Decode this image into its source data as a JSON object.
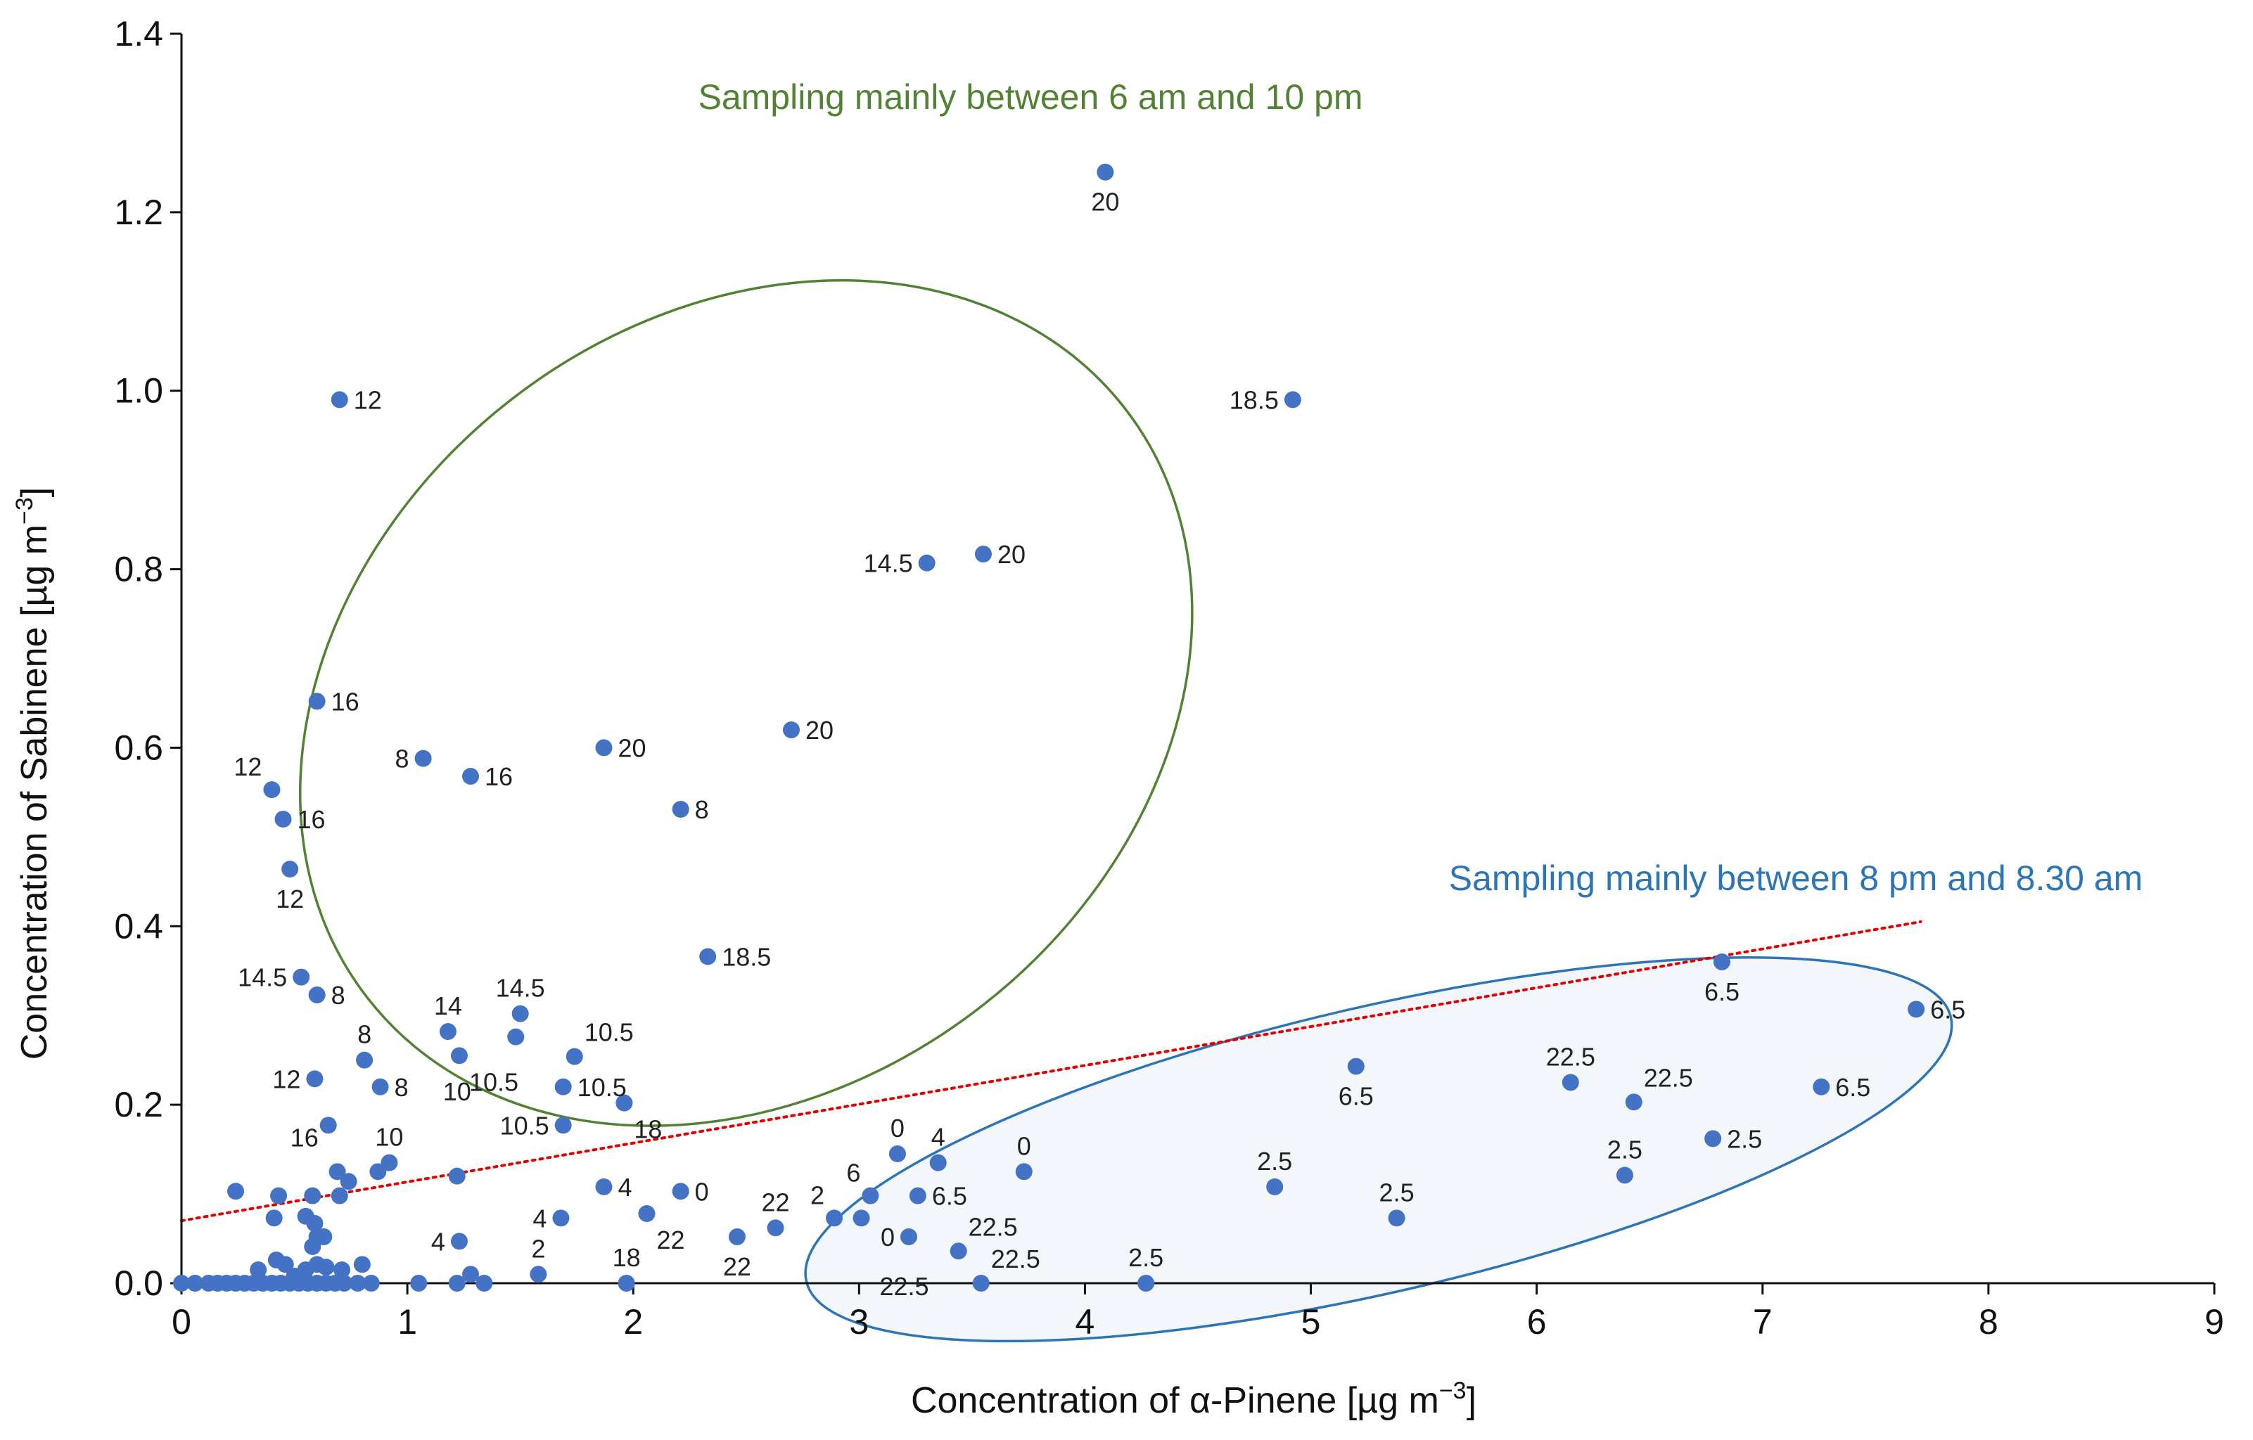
{
  "colors": {
    "point": "#4472C4",
    "day_group": "#548235",
    "night_group": "#2E75B6",
    "night_fill": "#F3F6FA",
    "trend": "#E00000",
    "axis": "#111111"
  },
  "chart_data": {
    "type": "scatter",
    "xlabel": "Concentration of α-Pinene [µg m",
    "xlabel_sup": "−3",
    "xlabel_end": "]",
    "ylabel": "Concentration of Sabinene [µg m",
    "ylabel_sup": "−3",
    "ylabel_end": "]",
    "xlim": [
      0,
      9
    ],
    "ylim": [
      0,
      1.4
    ],
    "x_ticks": [
      "0",
      "1",
      "2",
      "3",
      "4",
      "5",
      "6",
      "7",
      "8",
      "9"
    ],
    "y_ticks": [
      "0.0",
      "0.2",
      "0.4",
      "0.6",
      "0.8",
      "1.0",
      "1.2",
      "1.4"
    ],
    "grid": false,
    "annotations": [
      {
        "name": "day-group-annotation",
        "text": "Sampling mainly between 6 am and 10 pm"
      },
      {
        "name": "night-group-annotation",
        "text": "Sampling mainly between 8 pm and 8.30 am"
      }
    ],
    "groups": [
      {
        "name": "day",
        "label": "Sampling mainly between 6 am and 10 pm",
        "center": [
          2.5,
          0.65
        ],
        "radius": [
          4.25,
          0.43
        ],
        "angle_deg": 38
      },
      {
        "name": "night",
        "label": "Sampling mainly between 8 pm and 8.30 am",
        "center": [
          5.3,
          0.15
        ],
        "radius": [
          5.2,
          0.16
        ],
        "angle_deg": 13
      }
    ],
    "trendline": {
      "x": [
        0,
        7.7
      ],
      "y": [
        0.07,
        0.405
      ],
      "style": "dotted"
    },
    "points": [
      {
        "x": 4.09,
        "y": 1.245,
        "label": "20",
        "pos": "below"
      },
      {
        "x": 4.92,
        "y": 0.99,
        "label": "18.5",
        "pos": "left"
      },
      {
        "x": 0.7,
        "y": 0.99,
        "label": "12",
        "pos": "right"
      },
      {
        "x": 3.3,
        "y": 0.807,
        "label": "14.5",
        "pos": "left"
      },
      {
        "x": 3.55,
        "y": 0.817,
        "label": "20",
        "pos": "right"
      },
      {
        "x": 0.6,
        "y": 0.652,
        "label": "16",
        "pos": "right"
      },
      {
        "x": 2.7,
        "y": 0.62,
        "label": "20",
        "pos": "right"
      },
      {
        "x": 1.87,
        "y": 0.6,
        "label": "20",
        "pos": "right"
      },
      {
        "x": 1.07,
        "y": 0.588,
        "label": "8",
        "pos": "left"
      },
      {
        "x": 1.28,
        "y": 0.568,
        "label": "16",
        "pos": "right"
      },
      {
        "x": 0.4,
        "y": 0.553,
        "label": "12",
        "pos": "upper-left"
      },
      {
        "x": 2.21,
        "y": 0.531,
        "label": "8",
        "pos": "right"
      },
      {
        "x": 0.45,
        "y": 0.52,
        "label": "16",
        "pos": "right"
      },
      {
        "x": 0.48,
        "y": 0.464,
        "label": "12",
        "pos": "below"
      },
      {
        "x": 2.33,
        "y": 0.366,
        "label": "18.5",
        "pos": "right"
      },
      {
        "x": 0.53,
        "y": 0.343,
        "label": "14.5",
        "pos": "left"
      },
      {
        "x": 0.6,
        "y": 0.323,
        "label": "8",
        "pos": "right"
      },
      {
        "x": 1.5,
        "y": 0.302,
        "label": "14.5",
        "pos": "above"
      },
      {
        "x": 1.18,
        "y": 0.282,
        "label": "14",
        "pos": "above"
      },
      {
        "x": 1.48,
        "y": 0.276,
        "label": "",
        "pos": "none"
      },
      {
        "x": 1.74,
        "y": 0.254,
        "label": "10.5",
        "pos": "upper-right"
      },
      {
        "x": 1.23,
        "y": 0.255,
        "label": "10.5",
        "pos": "lower-right"
      },
      {
        "x": 0.81,
        "y": 0.25,
        "label": "8",
        "pos": "above"
      },
      {
        "x": 0.59,
        "y": 0.229,
        "label": "12",
        "pos": "left"
      },
      {
        "x": 1.69,
        "y": 0.22,
        "label": "10.5",
        "pos": "right"
      },
      {
        "x": 0.88,
        "y": 0.22,
        "label": "8",
        "pos": "right"
      },
      {
        "x": 1.96,
        "y": 0.202,
        "label": "18",
        "pos": "lower-right"
      },
      {
        "x": 0.65,
        "y": 0.177,
        "label": "16",
        "pos": "lower-left"
      },
      {
        "x": 1.69,
        "y": 0.177,
        "label": "10.5",
        "pos": "left"
      },
      {
        "x": 0.92,
        "y": 0.135,
        "label": "10",
        "pos": "above"
      },
      {
        "x": 1.22,
        "y": 0.248,
        "label": "10",
        "pos": "below-only"
      },
      {
        "x": 5.2,
        "y": 0.243,
        "label": "6.5",
        "pos": "below"
      },
      {
        "x": 6.15,
        "y": 0.225,
        "label": "22.5",
        "pos": "above"
      },
      {
        "x": 6.43,
        "y": 0.203,
        "label": "22.5",
        "pos": "upper-right"
      },
      {
        "x": 6.82,
        "y": 0.36,
        "label": "6.5",
        "pos": "below"
      },
      {
        "x": 7.68,
        "y": 0.307,
        "label": "6.5",
        "pos": "right"
      },
      {
        "x": 7.26,
        "y": 0.22,
        "label": "6.5",
        "pos": "right"
      },
      {
        "x": 6.78,
        "y": 0.162,
        "label": "2.5",
        "pos": "right"
      },
      {
        "x": 6.39,
        "y": 0.121,
        "label": "2.5",
        "pos": "above"
      },
      {
        "x": 4.84,
        "y": 0.108,
        "label": "2.5",
        "pos": "above"
      },
      {
        "x": 5.38,
        "y": 0.073,
        "label": "2.5",
        "pos": "above"
      },
      {
        "x": 4.27,
        "y": 0.0,
        "label": "2.5",
        "pos": "above"
      },
      {
        "x": 3.17,
        "y": 0.145,
        "label": "0",
        "pos": "above"
      },
      {
        "x": 3.35,
        "y": 0.135,
        "label": "4",
        "pos": "above"
      },
      {
        "x": 3.73,
        "y": 0.125,
        "label": "0",
        "pos": "above"
      },
      {
        "x": 1.87,
        "y": 0.108,
        "label": "4",
        "pos": "right"
      },
      {
        "x": 2.21,
        "y": 0.103,
        "label": "0",
        "pos": "right"
      },
      {
        "x": 3.05,
        "y": 0.098,
        "label": "6",
        "pos": "upper-left"
      },
      {
        "x": 3.26,
        "y": 0.098,
        "label": "6.5",
        "pos": "right"
      },
      {
        "x": 2.06,
        "y": 0.078,
        "label": "22",
        "pos": "lower-right"
      },
      {
        "x": 2.63,
        "y": 0.062,
        "label": "22",
        "pos": "above"
      },
      {
        "x": 2.89,
        "y": 0.073,
        "label": "2",
        "pos": "upper-left"
      },
      {
        "x": 3.01,
        "y": 0.073,
        "label": "",
        "pos": "none"
      },
      {
        "x": 2.46,
        "y": 0.052,
        "label": "22",
        "pos": "below"
      },
      {
        "x": 3.22,
        "y": 0.052,
        "label": "0",
        "pos": "left"
      },
      {
        "x": 3.44,
        "y": 0.036,
        "label": "22.5",
        "pos": "upper-right"
      },
      {
        "x": 3.2,
        "y": 0.03,
        "label": "22.5",
        "pos": "below-only"
      },
      {
        "x": 3.54,
        "y": 0.0,
        "label": "22.5",
        "pos": "upper-right"
      },
      {
        "x": 1.68,
        "y": 0.073,
        "label": "4",
        "pos": "left"
      },
      {
        "x": 1.23,
        "y": 0.047,
        "label": "4",
        "pos": "left"
      },
      {
        "x": 1.58,
        "y": 0.01,
        "label": "2",
        "pos": "above"
      },
      {
        "x": 1.97,
        "y": 0.0,
        "label": "18",
        "pos": "above"
      },
      {
        "x": 0.24,
        "y": 0.103,
        "label": "",
        "pos": "none"
      },
      {
        "x": 0.43,
        "y": 0.098,
        "label": "",
        "pos": "none"
      },
      {
        "x": 0.58,
        "y": 0.098,
        "label": "",
        "pos": "none"
      },
      {
        "x": 0.7,
        "y": 0.098,
        "label": "",
        "pos": "none"
      },
      {
        "x": 0.69,
        "y": 0.125,
        "label": "",
        "pos": "none"
      },
      {
        "x": 0.74,
        "y": 0.114,
        "label": "",
        "pos": "none"
      },
      {
        "x": 0.87,
        "y": 0.125,
        "label": "",
        "pos": "none"
      },
      {
        "x": 1.22,
        "y": 0.12,
        "label": "",
        "pos": "none"
      },
      {
        "x": 0.41,
        "y": 0.073,
        "label": "",
        "pos": "none"
      },
      {
        "x": 0.55,
        "y": 0.075,
        "label": "",
        "pos": "none"
      },
      {
        "x": 0.59,
        "y": 0.067,
        "label": "",
        "pos": "none"
      },
      {
        "x": 0.6,
        "y": 0.052,
        "label": "",
        "pos": "none"
      },
      {
        "x": 0.63,
        "y": 0.052,
        "label": "",
        "pos": "none"
      },
      {
        "x": 0.58,
        "y": 0.041,
        "label": "",
        "pos": "none"
      },
      {
        "x": 0.42,
        "y": 0.026,
        "label": "",
        "pos": "none"
      },
      {
        "x": 0.46,
        "y": 0.021,
        "label": "",
        "pos": "none"
      },
      {
        "x": 0.34,
        "y": 0.015,
        "label": "",
        "pos": "none"
      },
      {
        "x": 0.55,
        "y": 0.015,
        "label": "",
        "pos": "none"
      },
      {
        "x": 0.6,
        "y": 0.021,
        "label": "",
        "pos": "none"
      },
      {
        "x": 0.64,
        "y": 0.018,
        "label": "",
        "pos": "none"
      },
      {
        "x": 0.71,
        "y": 0.015,
        "label": "",
        "pos": "none"
      },
      {
        "x": 0.8,
        "y": 0.021,
        "label": "",
        "pos": "none"
      },
      {
        "x": 1.28,
        "y": 0.01,
        "label": "",
        "pos": "none"
      },
      {
        "x": 0.5,
        "y": 0.008,
        "label": "",
        "pos": "none"
      },
      {
        "x": 0.0,
        "y": 0.0,
        "label": "",
        "pos": "none"
      },
      {
        "x": 0.06,
        "y": 0.0,
        "label": "",
        "pos": "none"
      },
      {
        "x": 0.12,
        "y": 0.0,
        "label": "",
        "pos": "none"
      },
      {
        "x": 0.16,
        "y": 0.0,
        "label": "",
        "pos": "none"
      },
      {
        "x": 0.2,
        "y": 0.0,
        "label": "",
        "pos": "none"
      },
      {
        "x": 0.24,
        "y": 0.0,
        "label": "",
        "pos": "none"
      },
      {
        "x": 0.28,
        "y": 0.0,
        "label": "",
        "pos": "none"
      },
      {
        "x": 0.32,
        "y": 0.0,
        "label": "",
        "pos": "none"
      },
      {
        "x": 0.36,
        "y": 0.0,
        "label": "",
        "pos": "none"
      },
      {
        "x": 0.4,
        "y": 0.0,
        "label": "",
        "pos": "none"
      },
      {
        "x": 0.44,
        "y": 0.0,
        "label": "",
        "pos": "none"
      },
      {
        "x": 0.48,
        "y": 0.0,
        "label": "",
        "pos": "none"
      },
      {
        "x": 0.52,
        "y": 0.0,
        "label": "",
        "pos": "none"
      },
      {
        "x": 0.56,
        "y": 0.0,
        "label": "",
        "pos": "none"
      },
      {
        "x": 0.6,
        "y": 0.0,
        "label": "",
        "pos": "none"
      },
      {
        "x": 0.64,
        "y": 0.0,
        "label": "",
        "pos": "none"
      },
      {
        "x": 0.68,
        "y": 0.0,
        "label": "",
        "pos": "none"
      },
      {
        "x": 0.72,
        "y": 0.0,
        "label": "",
        "pos": "none"
      },
      {
        "x": 0.78,
        "y": 0.0,
        "label": "",
        "pos": "none"
      },
      {
        "x": 0.84,
        "y": 0.0,
        "label": "",
        "pos": "none"
      },
      {
        "x": 1.05,
        "y": 0.0,
        "label": "",
        "pos": "none"
      },
      {
        "x": 1.22,
        "y": 0.0,
        "label": "",
        "pos": "none"
      },
      {
        "x": 1.34,
        "y": 0.0,
        "label": "",
        "pos": "none"
      }
    ]
  }
}
